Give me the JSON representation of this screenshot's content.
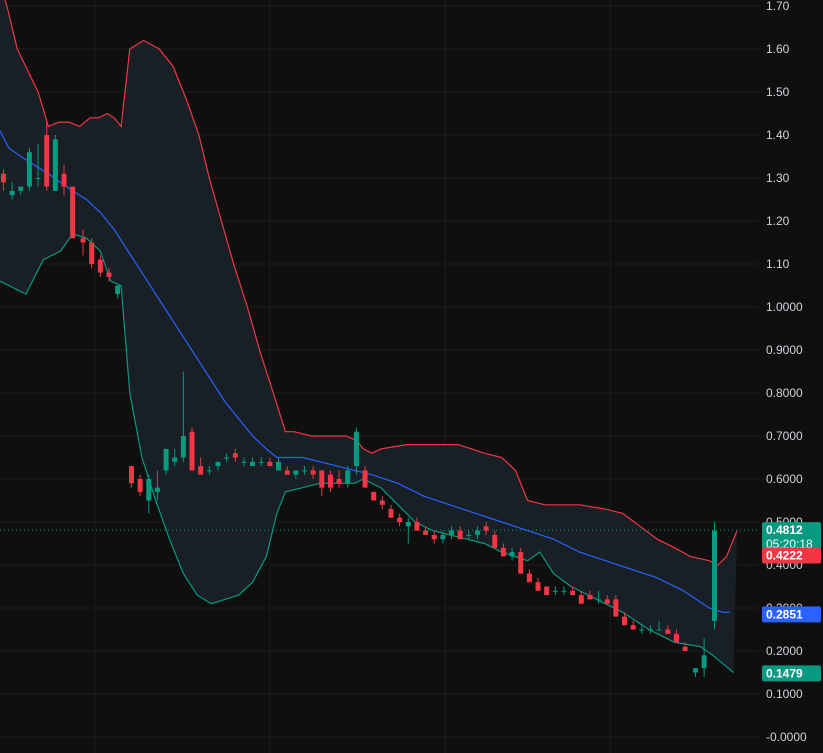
{
  "chart_data": {
    "type": "candlestick",
    "ylim": [
      0.0,
      1.7
    ],
    "y_ticks": [
      {
        "value": 1.7,
        "label": "1.70"
      },
      {
        "value": 1.6,
        "label": "1.60"
      },
      {
        "value": 1.5,
        "label": "1.50"
      },
      {
        "value": 1.4,
        "label": "1.40"
      },
      {
        "value": 1.3,
        "label": "1.30"
      },
      {
        "value": 1.2,
        "label": "1.20"
      },
      {
        "value": 1.1,
        "label": "1.10"
      },
      {
        "value": 1.0,
        "label": "1.0000"
      },
      {
        "value": 0.9,
        "label": "0.9000"
      },
      {
        "value": 0.8,
        "label": "0.8000"
      },
      {
        "value": 0.7,
        "label": "0.7000"
      },
      {
        "value": 0.6,
        "label": "0.6000"
      },
      {
        "value": 0.5,
        "label": "0.5000"
      },
      {
        "value": 0.4,
        "label": "0.4000"
      },
      {
        "value": 0.3,
        "label": "0.3000"
      },
      {
        "value": 0.2,
        "label": "0.2000"
      },
      {
        "value": 0.1,
        "label": "0.1000"
      },
      {
        "value": 0.0,
        "label": "-0.0000"
      }
    ],
    "price_badges": [
      {
        "value": 0.4812,
        "label": "0.4812",
        "sub": "05:20:18",
        "color": "#089981"
      },
      {
        "value": 0.4222,
        "label": "0.4222",
        "color": "#f23645"
      },
      {
        "value": 0.2851,
        "label": "0.2851",
        "color": "#2962ff"
      },
      {
        "value": 0.1479,
        "label": "0.1479",
        "color": "#089981"
      }
    ],
    "last_price": 0.4812,
    "colors": {
      "up": "#089981",
      "down": "#f23645",
      "upper_band": "#f23645",
      "basis": "#2962ff",
      "lower_band": "#089981",
      "band_fill": "#1a2229",
      "grid": "#1e1e1e",
      "background": "#0f0f0f"
    },
    "bands": {
      "upper": [
        [
          0,
          1.75
        ],
        [
          0.04,
          1.7
        ],
        [
          0.1,
          1.6
        ],
        [
          0.16,
          1.55
        ],
        [
          0.22,
          1.5
        ],
        [
          0.28,
          1.42
        ],
        [
          0.34,
          1.43
        ],
        [
          0.4,
          1.43
        ],
        [
          0.46,
          1.42
        ],
        [
          0.52,
          1.44
        ],
        [
          0.57,
          1.44
        ],
        [
          0.62,
          1.45
        ],
        [
          0.66,
          1.44
        ],
        [
          0.7,
          1.42
        ],
        [
          0.75,
          1.6
        ],
        [
          0.83,
          1.62
        ],
        [
          0.92,
          1.6
        ],
        [
          1.0,
          1.56
        ],
        [
          1.08,
          1.48
        ],
        [
          1.15,
          1.4
        ],
        [
          1.21,
          1.3
        ],
        [
          1.28,
          1.2
        ],
        [
          1.35,
          1.1
        ],
        [
          1.43,
          1.0
        ],
        [
          1.5,
          0.9
        ],
        [
          1.58,
          0.8
        ],
        [
          1.65,
          0.71
        ],
        [
          1.7,
          0.71
        ],
        [
          1.8,
          0.7
        ],
        [
          1.9,
          0.7
        ],
        [
          2.0,
          0.7
        ],
        [
          2.06,
          0.69
        ],
        [
          2.1,
          0.67
        ],
        [
          2.15,
          0.66
        ],
        [
          2.2,
          0.67
        ],
        [
          2.35,
          0.68
        ],
        [
          2.5,
          0.68
        ],
        [
          2.65,
          0.68
        ],
        [
          2.8,
          0.66
        ],
        [
          2.9,
          0.65
        ],
        [
          2.98,
          0.62
        ],
        [
          3.05,
          0.55
        ],
        [
          3.15,
          0.54
        ],
        [
          3.25,
          0.54
        ],
        [
          3.35,
          0.54
        ],
        [
          3.5,
          0.53
        ],
        [
          3.6,
          0.52
        ],
        [
          3.7,
          0.49
        ],
        [
          3.8,
          0.46
        ],
        [
          3.9,
          0.44
        ],
        [
          3.99,
          0.42
        ],
        [
          4.1,
          0.41
        ],
        [
          4.15,
          0.4
        ],
        [
          4.2,
          0.42
        ],
        [
          4.26,
          0.48
        ]
      ],
      "basis": [
        [
          0,
          1.41
        ],
        [
          0.05,
          1.37
        ],
        [
          0.12,
          1.35
        ],
        [
          0.2,
          1.33
        ],
        [
          0.28,
          1.31
        ],
        [
          0.35,
          1.29
        ],
        [
          0.42,
          1.27
        ],
        [
          0.5,
          1.25
        ],
        [
          0.58,
          1.22
        ],
        [
          0.66,
          1.18
        ],
        [
          0.74,
          1.13
        ],
        [
          0.82,
          1.08
        ],
        [
          0.9,
          1.03
        ],
        [
          0.98,
          0.98
        ],
        [
          1.06,
          0.93
        ],
        [
          1.14,
          0.88
        ],
        [
          1.22,
          0.83
        ],
        [
          1.3,
          0.78
        ],
        [
          1.38,
          0.74
        ],
        [
          1.46,
          0.7
        ],
        [
          1.54,
          0.67
        ],
        [
          1.6,
          0.65
        ],
        [
          1.65,
          0.65
        ],
        [
          1.75,
          0.65
        ],
        [
          1.85,
          0.64
        ],
        [
          1.95,
          0.63
        ],
        [
          2.05,
          0.62
        ],
        [
          2.15,
          0.61
        ],
        [
          2.3,
          0.59
        ],
        [
          2.45,
          0.56
        ],
        [
          2.6,
          0.54
        ],
        [
          2.75,
          0.52
        ],
        [
          2.9,
          0.5
        ],
        [
          3.05,
          0.48
        ],
        [
          3.2,
          0.46
        ],
        [
          3.35,
          0.43
        ],
        [
          3.5,
          0.41
        ],
        [
          3.65,
          0.39
        ],
        [
          3.8,
          0.37
        ],
        [
          3.95,
          0.34
        ],
        [
          4.1,
          0.3
        ],
        [
          4.18,
          0.29
        ],
        [
          4.22,
          0.29
        ]
      ],
      "lower": [
        [
          0,
          1.06
        ],
        [
          0.05,
          1.05
        ],
        [
          0.1,
          1.04
        ],
        [
          0.15,
          1.03
        ],
        [
          0.2,
          1.07
        ],
        [
          0.25,
          1.11
        ],
        [
          0.3,
          1.12
        ],
        [
          0.35,
          1.13
        ],
        [
          0.42,
          1.17
        ],
        [
          0.5,
          1.16
        ],
        [
          0.58,
          1.13
        ],
        [
          0.64,
          1.06
        ],
        [
          0.7,
          1.05
        ],
        [
          0.75,
          0.8
        ],
        [
          0.82,
          0.65
        ],
        [
          0.9,
          0.55
        ],
        [
          0.98,
          0.46
        ],
        [
          1.06,
          0.38
        ],
        [
          1.14,
          0.33
        ],
        [
          1.22,
          0.31
        ],
        [
          1.3,
          0.32
        ],
        [
          1.38,
          0.33
        ],
        [
          1.46,
          0.36
        ],
        [
          1.54,
          0.42
        ],
        [
          1.6,
          0.52
        ],
        [
          1.65,
          0.57
        ],
        [
          1.75,
          0.58
        ],
        [
          1.85,
          0.59
        ],
        [
          1.95,
          0.59
        ],
        [
          2.05,
          0.59
        ],
        [
          2.1,
          0.6
        ],
        [
          2.2,
          0.58
        ],
        [
          2.3,
          0.54
        ],
        [
          2.4,
          0.5
        ],
        [
          2.5,
          0.48
        ],
        [
          2.6,
          0.47
        ],
        [
          2.7,
          0.46
        ],
        [
          2.8,
          0.45
        ],
        [
          2.9,
          0.43
        ],
        [
          3.05,
          0.41
        ],
        [
          3.12,
          0.43
        ],
        [
          3.2,
          0.38
        ],
        [
          3.3,
          0.35
        ],
        [
          3.45,
          0.32
        ],
        [
          3.6,
          0.29
        ],
        [
          3.75,
          0.25
        ],
        [
          3.9,
          0.22
        ],
        [
          4.05,
          0.21
        ],
        [
          4.12,
          0.19
        ],
        [
          4.18,
          0.17
        ],
        [
          4.24,
          0.15
        ]
      ]
    },
    "candles": [
      [
        0.02,
        1.31,
        1.32,
        1.27,
        1.29
      ],
      [
        0.07,
        1.26,
        1.29,
        1.25,
        1.27
      ],
      [
        0.12,
        1.27,
        1.28,
        1.26,
        1.28
      ],
      [
        0.17,
        1.28,
        1.37,
        1.27,
        1.36
      ],
      [
        0.22,
        1.3,
        1.38,
        1.28,
        1.3
      ],
      [
        0.27,
        1.4,
        1.43,
        1.27,
        1.28
      ],
      [
        0.32,
        1.27,
        1.4,
        1.27,
        1.39
      ],
      [
        0.37,
        1.31,
        1.33,
        1.26,
        1.28
      ],
      [
        0.42,
        1.28,
        1.28,
        1.16,
        1.16
      ],
      [
        0.48,
        1.16,
        1.18,
        1.12,
        1.15
      ],
      [
        0.53,
        1.15,
        1.16,
        1.09,
        1.1
      ],
      [
        0.58,
        1.11,
        1.12,
        1.07,
        1.08
      ],
      [
        0.63,
        1.08,
        1.09,
        1.06,
        1.07
      ],
      [
        0.68,
        1.03,
        1.05,
        1.02,
        1.05
      ],
      [
        0.76,
        0.63,
        0.63,
        0.58,
        0.59
      ],
      [
        0.81,
        0.6,
        0.61,
        0.56,
        0.57
      ],
      [
        0.86,
        0.55,
        0.61,
        0.52,
        0.6
      ],
      [
        0.91,
        0.57,
        0.62,
        0.55,
        0.58
      ],
      [
        0.96,
        0.62,
        0.67,
        0.61,
        0.67
      ],
      [
        1.01,
        0.64,
        0.67,
        0.63,
        0.65
      ],
      [
        1.06,
        0.65,
        0.85,
        0.64,
        0.7
      ],
      [
        1.11,
        0.71,
        0.72,
        0.62,
        0.62
      ],
      [
        1.16,
        0.63,
        0.65,
        0.61,
        0.61
      ],
      [
        1.21,
        0.62,
        0.63,
        0.61,
        0.62
      ],
      [
        1.26,
        0.63,
        0.64,
        0.62,
        0.64
      ],
      [
        1.31,
        0.65,
        0.66,
        0.64,
        0.65
      ],
      [
        1.36,
        0.66,
        0.67,
        0.64,
        0.65
      ],
      [
        1.41,
        0.64,
        0.65,
        0.63,
        0.64
      ],
      [
        1.46,
        0.63,
        0.65,
        0.63,
        0.64
      ],
      [
        1.51,
        0.64,
        0.65,
        0.63,
        0.64
      ],
      [
        1.56,
        0.64,
        0.65,
        0.63,
        0.63
      ],
      [
        1.61,
        0.62,
        0.65,
        0.62,
        0.64
      ],
      [
        1.66,
        0.62,
        0.63,
        0.61,
        0.61
      ],
      [
        1.71,
        0.61,
        0.62,
        0.6,
        0.62
      ],
      [
        1.76,
        0.62,
        0.63,
        0.61,
        0.62
      ],
      [
        1.81,
        0.62,
        0.63,
        0.6,
        0.61
      ],
      [
        1.86,
        0.62,
        0.62,
        0.56,
        0.58
      ],
      [
        1.91,
        0.61,
        0.62,
        0.57,
        0.58
      ],
      [
        1.96,
        0.6,
        0.62,
        0.58,
        0.59
      ],
      [
        2.01,
        0.59,
        0.63,
        0.58,
        0.62
      ],
      [
        2.06,
        0.63,
        0.72,
        0.61,
        0.71
      ],
      [
        2.11,
        0.62,
        0.63,
        0.58,
        0.58
      ],
      [
        2.16,
        0.57,
        0.57,
        0.55,
        0.55
      ],
      [
        2.21,
        0.55,
        0.56,
        0.53,
        0.54
      ],
      [
        2.26,
        0.53,
        0.54,
        0.51,
        0.51
      ],
      [
        2.31,
        0.51,
        0.52,
        0.49,
        0.5
      ],
      [
        2.36,
        0.49,
        0.51,
        0.45,
        0.5
      ],
      [
        2.41,
        0.5,
        0.51,
        0.48,
        0.48
      ],
      [
        2.46,
        0.48,
        0.49,
        0.47,
        0.47
      ],
      [
        2.51,
        0.47,
        0.48,
        0.45,
        0.46
      ],
      [
        2.56,
        0.46,
        0.48,
        0.45,
        0.47
      ],
      [
        2.61,
        0.47,
        0.49,
        0.46,
        0.48
      ],
      [
        2.66,
        0.48,
        0.49,
        0.46,
        0.46
      ],
      [
        2.71,
        0.47,
        0.48,
        0.46,
        0.47
      ],
      [
        2.76,
        0.47,
        0.49,
        0.46,
        0.48
      ],
      [
        2.81,
        0.49,
        0.5,
        0.47,
        0.48
      ],
      [
        2.86,
        0.47,
        0.48,
        0.44,
        0.44
      ],
      [
        2.91,
        0.44,
        0.45,
        0.42,
        0.42
      ],
      [
        2.96,
        0.42,
        0.44,
        0.41,
        0.43
      ],
      [
        3.01,
        0.43,
        0.44,
        0.38,
        0.38
      ],
      [
        3.06,
        0.38,
        0.39,
        0.36,
        0.36
      ],
      [
        3.11,
        0.36,
        0.37,
        0.34,
        0.34
      ],
      [
        3.16,
        0.35,
        0.35,
        0.33,
        0.33
      ],
      [
        3.21,
        0.34,
        0.35,
        0.33,
        0.34
      ],
      [
        3.26,
        0.34,
        0.35,
        0.33,
        0.34
      ],
      [
        3.31,
        0.34,
        0.35,
        0.33,
        0.33
      ],
      [
        3.36,
        0.33,
        0.34,
        0.31,
        0.31
      ],
      [
        3.41,
        0.33,
        0.34,
        0.32,
        0.32
      ],
      [
        3.46,
        0.32,
        0.34,
        0.31,
        0.32
      ],
      [
        3.51,
        0.32,
        0.33,
        0.31,
        0.31
      ],
      [
        3.56,
        0.32,
        0.33,
        0.28,
        0.28
      ],
      [
        3.61,
        0.28,
        0.29,
        0.26,
        0.26
      ],
      [
        3.66,
        0.26,
        0.27,
        0.25,
        0.25
      ],
      [
        3.71,
        0.25,
        0.26,
        0.24,
        0.25
      ],
      [
        3.76,
        0.25,
        0.26,
        0.24,
        0.25
      ],
      [
        3.81,
        0.25,
        0.27,
        0.25,
        0.25
      ],
      [
        3.86,
        0.25,
        0.26,
        0.24,
        0.24
      ],
      [
        3.91,
        0.24,
        0.25,
        0.22,
        0.22
      ],
      [
        3.96,
        0.21,
        0.22,
        0.2,
        0.2
      ],
      [
        4.02,
        0.15,
        0.16,
        0.14,
        0.16
      ],
      [
        4.07,
        0.16,
        0.23,
        0.14,
        0.19
      ],
      [
        4.13,
        0.27,
        0.5,
        0.25,
        0.48
      ]
    ]
  }
}
